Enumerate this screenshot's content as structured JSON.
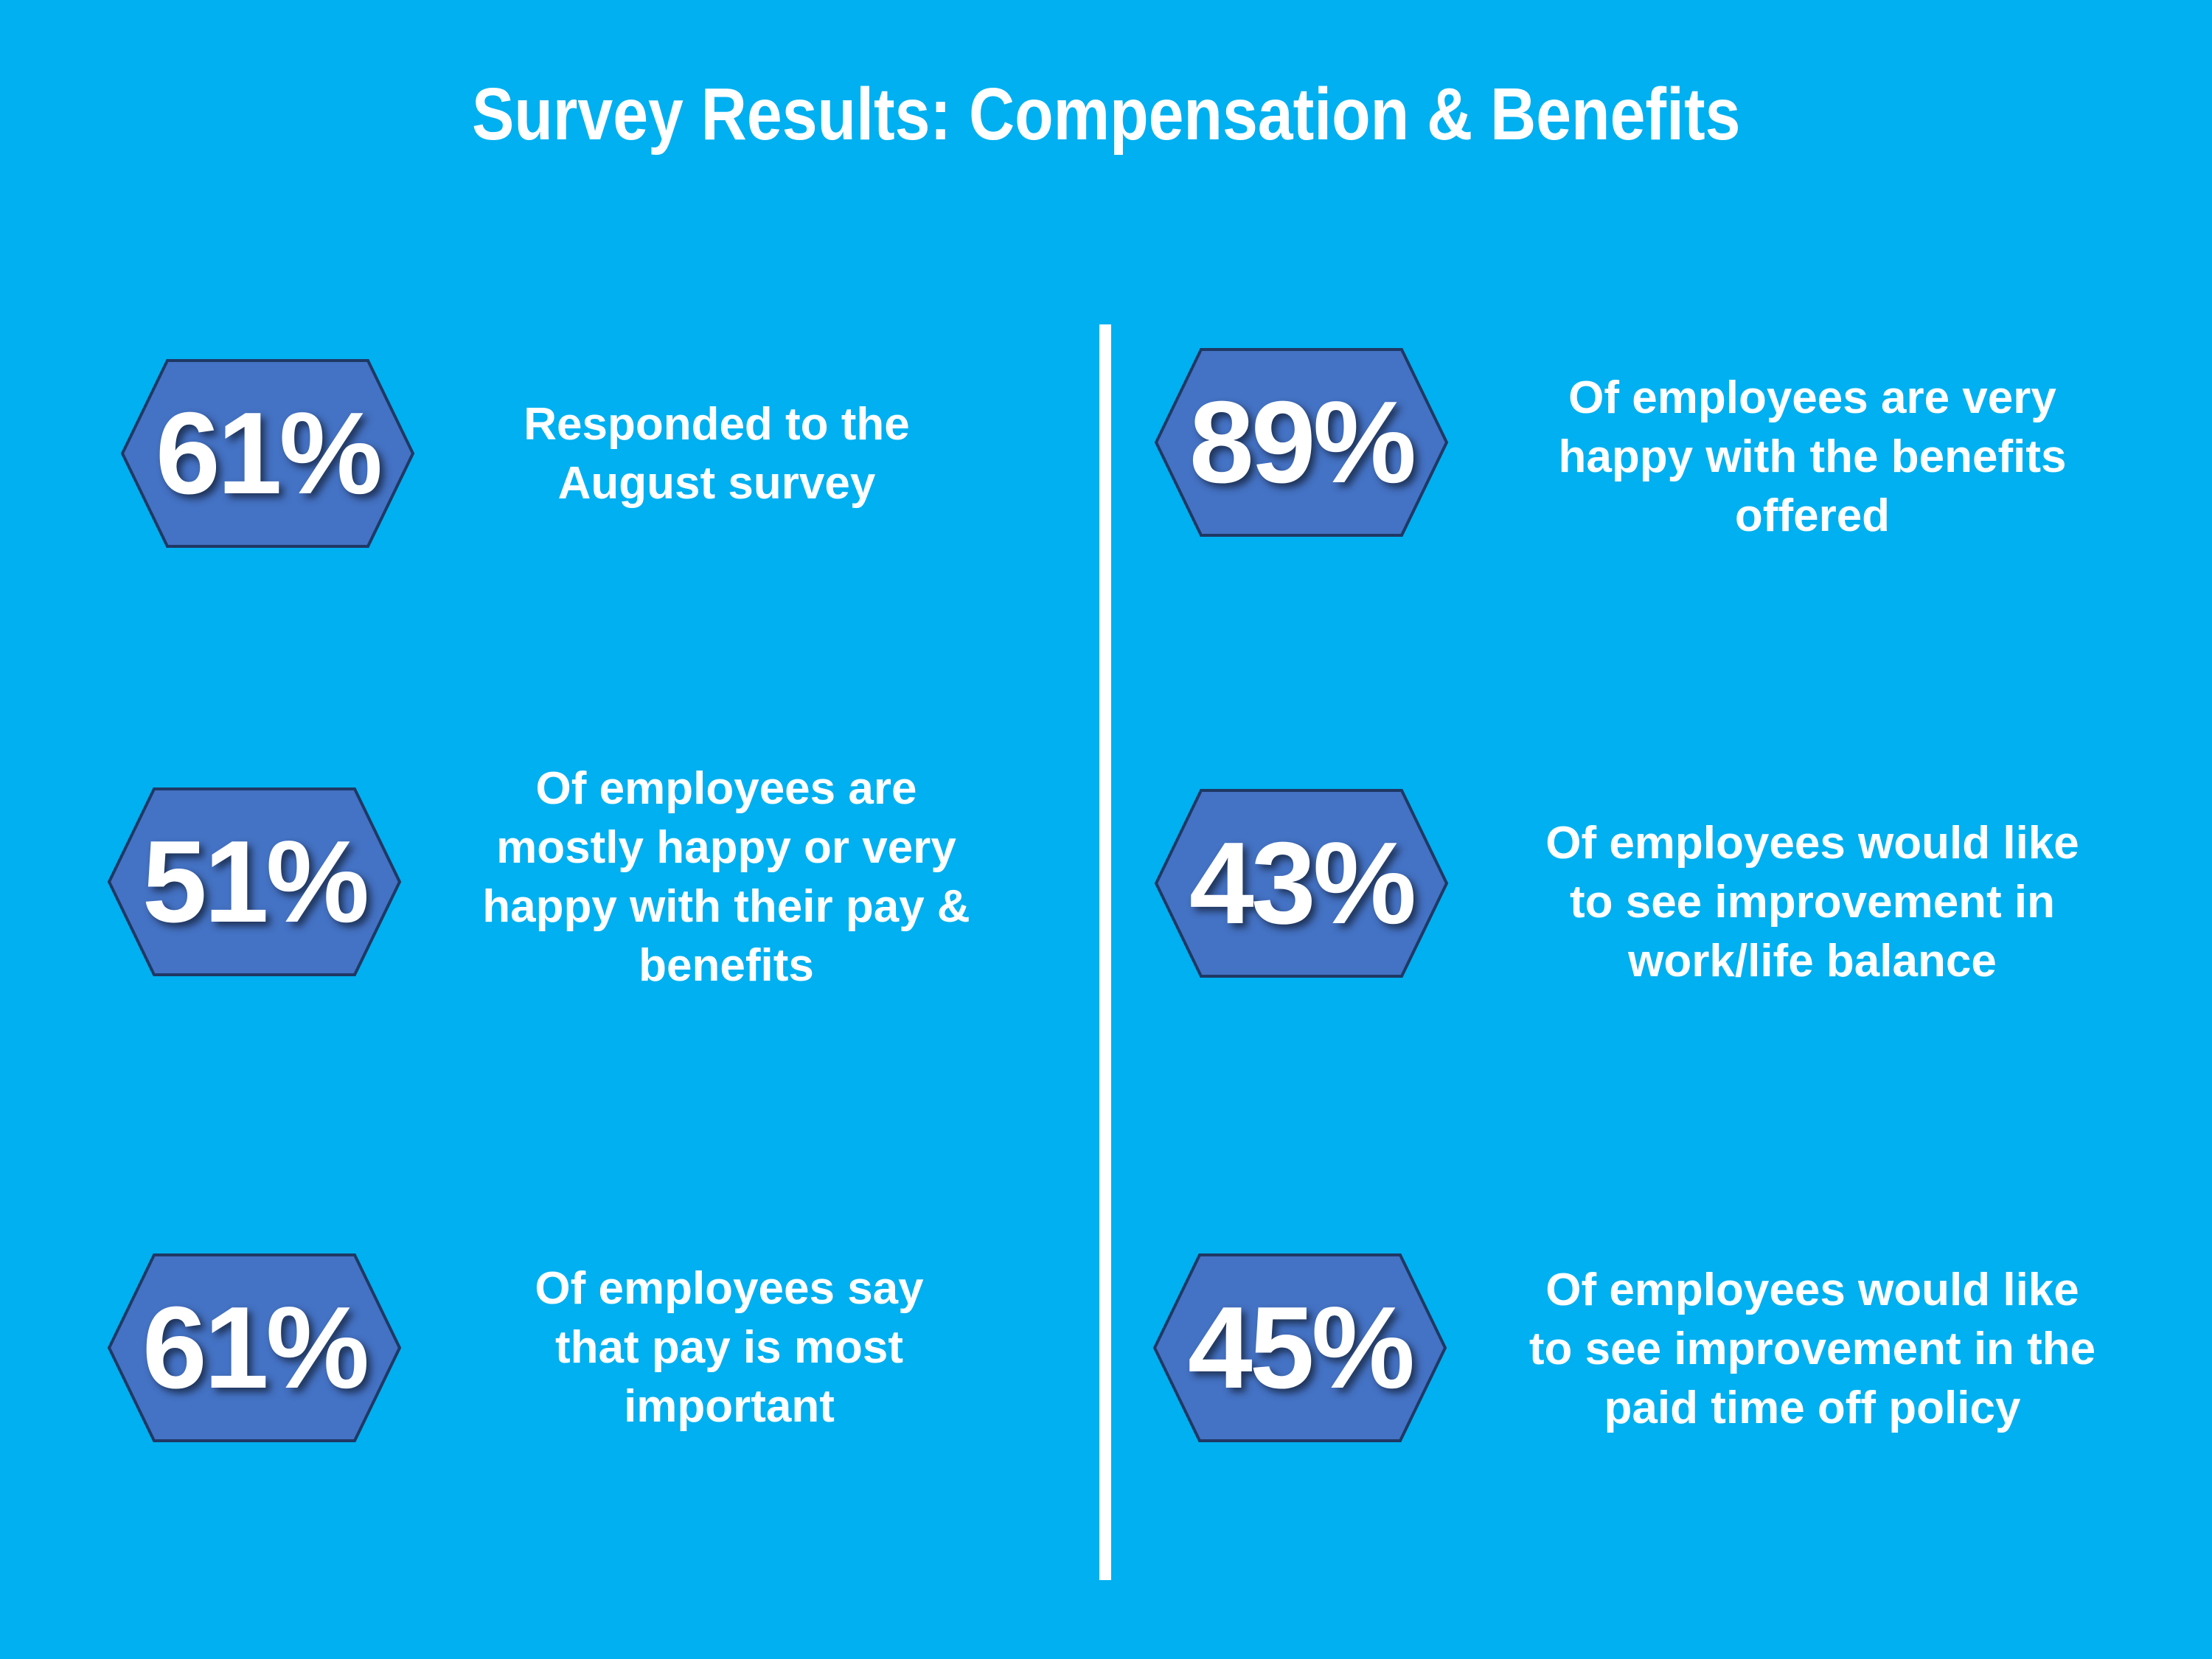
{
  "title": "Survey Results: Compensation & Benefits",
  "colors": {
    "background": "#00b0f0",
    "hex_fill": "#4472c4",
    "hex_stroke": "#1f3864"
  },
  "stats": [
    {
      "value": "61%",
      "lines": [
        "Responded to the",
        "August survey"
      ]
    },
    {
      "value": "51%",
      "lines": [
        "Of employees are",
        "mostly happy or very",
        "happy with their pay &",
        "benefits"
      ]
    },
    {
      "value": "61%",
      "lines": [
        "Of employees say",
        "that pay is most",
        "important"
      ]
    },
    {
      "value": "89%",
      "lines": [
        "Of employees are very",
        "happy with the benefits",
        "offered"
      ]
    },
    {
      "value": "43%",
      "lines": [
        "Of employees would like",
        "to see improvement in",
        "work/life balance"
      ]
    },
    {
      "value": "45%",
      "lines": [
        "Of employees would like",
        "to see improvement in the",
        "paid time off policy"
      ]
    }
  ]
}
